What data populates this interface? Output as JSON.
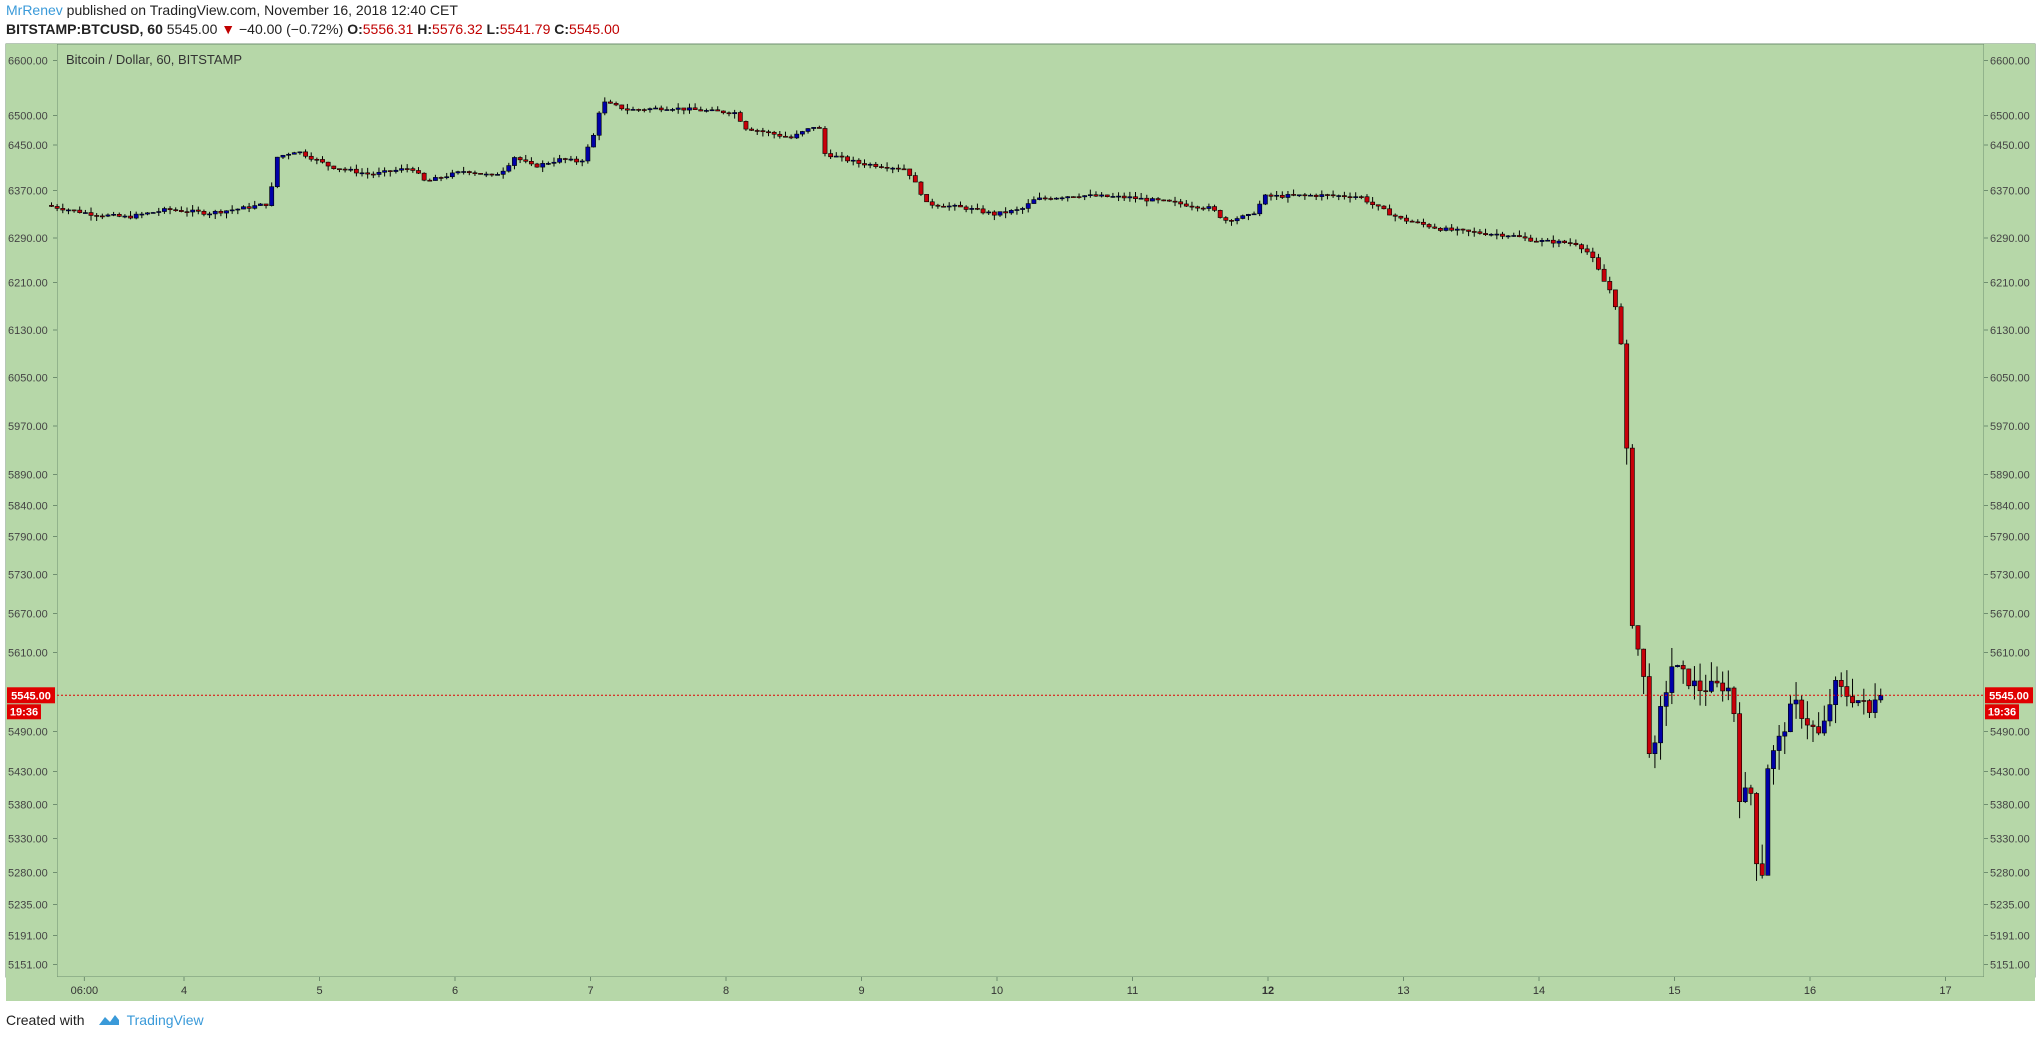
{
  "header": {
    "author": "MrRenev",
    "published": " published on TradingView.com, November 16, 2018 12:40 CET",
    "symbol": "BITSTAMP:BTCUSD, 60",
    "last": "5545.00",
    "change": "−40.00 (−0.72%)",
    "open_label": "O:",
    "open": "5556.31",
    "high_label": "H:",
    "high": "5576.32",
    "low_label": "L:",
    "low": "5541.79",
    "close_label": "C:",
    "close": "5545.00"
  },
  "footer": {
    "created_with": "Created with",
    "brand": "TradingView",
    "logo_icon": "tradingview-cloud-icon"
  },
  "colors": {
    "plot_bg": "#b6d7a8",
    "up_body": "#0000a8",
    "down_body": "#c8000a",
    "wick": "#000000",
    "price_line": "#e00000",
    "axis_text": "#444444",
    "frame": "#6f8f6f"
  },
  "chart_data": {
    "type": "candlestick",
    "title": "Bitcoin / Dollar, 60, BITSTAMP",
    "y_ticks": [
      6600,
      6500,
      6450,
      6370,
      6290,
      6210,
      6130,
      6050,
      5970,
      5890,
      5840,
      5790,
      5730,
      5670,
      5610,
      5490,
      5430,
      5380,
      5330,
      5280,
      5235,
      5191,
      5151
    ],
    "y_tick_labels": [
      "6600.00",
      "6500.00",
      "6450.00",
      "6370.00",
      "6290.00",
      "6210.00",
      "6130.00",
      "6050.00",
      "5970.00",
      "5890.00",
      "5840.00",
      "5790.00",
      "5730.00",
      "5670.00",
      "5610.00",
      "5490.00",
      "5430.00",
      "5380.00",
      "5330.00",
      "5280.00",
      "5235.00",
      "5191.00",
      "5151.00"
    ],
    "x_labels": [
      "06:00",
      "4",
      "5",
      "6",
      "7",
      "8",
      "9",
      "10",
      "11",
      "12",
      "13",
      "14",
      "15",
      "16",
      "17"
    ],
    "x_label_days": [
      0.25,
      1,
      2,
      3,
      4,
      5,
      6,
      7,
      8,
      9,
      10,
      11,
      12,
      13,
      14
    ],
    "bold_x_label": "12",
    "last_price": 5545.0,
    "last_price_label": "5545.00",
    "countdown": "19:36",
    "anchors": [
      [
        0.0,
        6345
      ],
      [
        0.35,
        6330
      ],
      [
        0.6,
        6325
      ],
      [
        0.9,
        6338
      ],
      [
        1.2,
        6332
      ],
      [
        1.45,
        6340
      ],
      [
        1.65,
        6348
      ],
      [
        1.7,
        6428
      ],
      [
        1.85,
        6440
      ],
      [
        2.1,
        6412
      ],
      [
        2.4,
        6398
      ],
      [
        2.7,
        6410
      ],
      [
        2.8,
        6385
      ],
      [
        2.9,
        6392
      ],
      [
        3.1,
        6405
      ],
      [
        3.3,
        6395
      ],
      [
        3.4,
        6410
      ],
      [
        3.45,
        6430
      ],
      [
        3.6,
        6412
      ],
      [
        3.8,
        6425
      ],
      [
        3.95,
        6420
      ],
      [
        4.05,
        6470
      ],
      [
        4.1,
        6525
      ],
      [
        4.3,
        6510
      ],
      [
        4.6,
        6514
      ],
      [
        4.9,
        6508
      ],
      [
        5.1,
        6505
      ],
      [
        5.15,
        6480
      ],
      [
        5.5,
        6462
      ],
      [
        5.7,
        6485
      ],
      [
        5.75,
        6435
      ],
      [
        6.0,
        6418
      ],
      [
        6.35,
        6408
      ],
      [
        6.45,
        6370
      ],
      [
        6.5,
        6348
      ],
      [
        6.8,
        6340
      ],
      [
        7.0,
        6330
      ],
      [
        7.2,
        6338
      ],
      [
        7.3,
        6355
      ],
      [
        7.6,
        6362
      ],
      [
        8.0,
        6358
      ],
      [
        8.3,
        6350
      ],
      [
        8.6,
        6340
      ],
      [
        8.7,
        6320
      ],
      [
        8.9,
        6328
      ],
      [
        9.0,
        6360
      ],
      [
        9.4,
        6362
      ],
      [
        9.7,
        6360
      ],
      [
        9.8,
        6345
      ],
      [
        10.0,
        6322
      ],
      [
        10.3,
        6305
      ],
      [
        10.5,
        6300
      ],
      [
        10.8,
        6295
      ],
      [
        11.0,
        6285
      ],
      [
        11.2,
        6282
      ],
      [
        11.3,
        6280
      ],
      [
        11.4,
        6260
      ],
      [
        11.5,
        6212
      ],
      [
        11.55,
        6195
      ],
      [
        11.6,
        6160
      ],
      [
        11.65,
        6050
      ],
      [
        11.7,
        5670
      ],
      [
        11.8,
        5560
      ],
      [
        11.85,
        5420
      ],
      [
        11.9,
        5505
      ],
      [
        12.0,
        5590
      ],
      [
        12.2,
        5555
      ],
      [
        12.4,
        5560
      ],
      [
        12.45,
        5545
      ],
      [
        12.5,
        5395
      ],
      [
        12.6,
        5398
      ],
      [
        12.65,
        5205
      ],
      [
        12.7,
        5435
      ],
      [
        12.8,
        5480
      ],
      [
        12.9,
        5535
      ],
      [
        13.0,
        5505
      ],
      [
        13.1,
        5480
      ],
      [
        13.2,
        5560
      ],
      [
        13.3,
        5545
      ],
      [
        13.4,
        5535
      ],
      [
        13.48,
        5510
      ],
      [
        13.5,
        5545
      ]
    ]
  }
}
